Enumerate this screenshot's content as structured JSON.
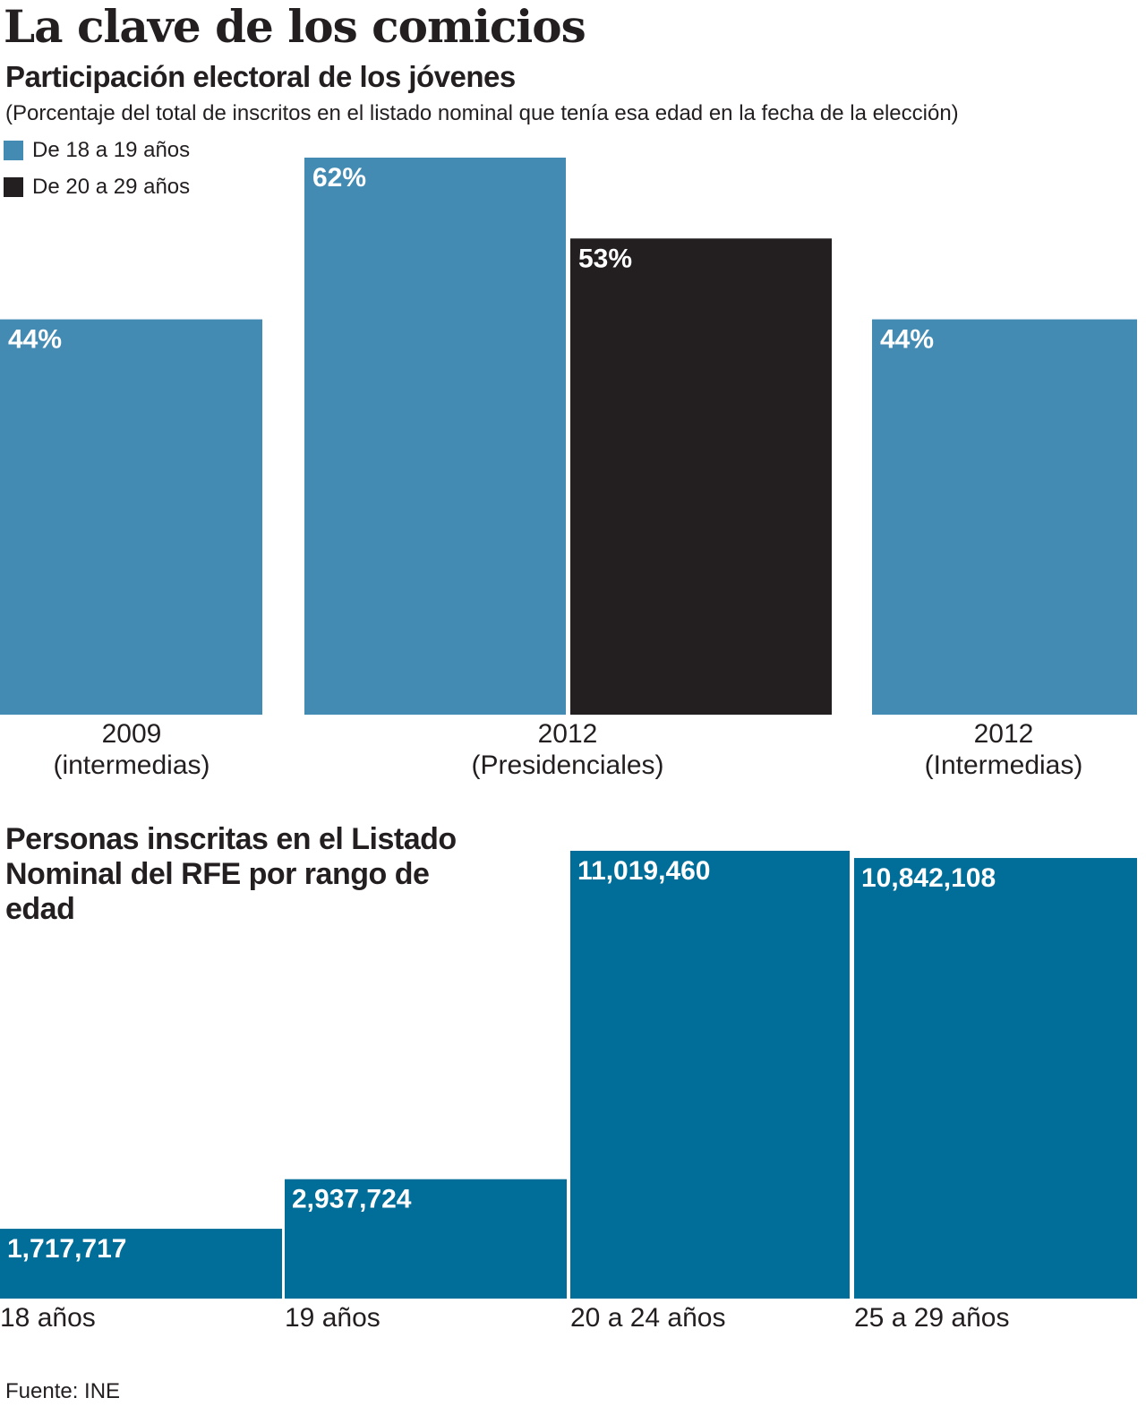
{
  "header": {
    "title": "La clave de los comicios"
  },
  "chart1": {
    "title": "Participación electoral de los jóvenes",
    "note": "(Porcentaje del total de inscritos en el listado nominal que tenía esa edad en la fecha de la elección)",
    "legend": [
      {
        "label": "De 18 a 19 años",
        "color": "#438bb3"
      },
      {
        "label": "De 20 a 29 años",
        "color": "#231f20"
      }
    ]
  },
  "chart2": {
    "title": "Personas inscritas en el Listado Nominal del RFE por rango de edad"
  },
  "footer": {
    "source": "Fuente: INE"
  },
  "chart_data": [
    {
      "type": "bar",
      "title": "Participación electoral de los jóvenes",
      "unit": "%",
      "categories": [
        {
          "line1": "2009",
          "line2": "(intermedias)"
        },
        {
          "line1": "2012",
          "line2": "(Presidenciales)"
        },
        {
          "line1": "2012",
          "line2": "(Intermedias)"
        }
      ],
      "series": [
        {
          "name": "De 18 a 19 años",
          "color": "#438bb3",
          "values": [
            44,
            62,
            44
          ],
          "labels": [
            "44%",
            "62%",
            "44%"
          ]
        },
        {
          "name": "De 20 a 29 años",
          "color": "#231f20",
          "values": [
            null,
            53,
            null
          ],
          "labels": [
            null,
            "53%",
            null
          ]
        }
      ],
      "ylim": [
        0,
        62
      ]
    },
    {
      "type": "bar",
      "title": "Personas inscritas en el Listado Nominal del RFE por rango de edad",
      "color": "#006e98",
      "categories": [
        "18 años",
        "19 años",
        "20 a 24 años",
        "25 a 29 años"
      ],
      "values": [
        1717717,
        2937724,
        11019460,
        10842108
      ],
      "labels": [
        "1,717,717",
        "2,937,724",
        "11,019,460",
        "10,842,108"
      ],
      "ylim": [
        0,
        11019460
      ]
    }
  ]
}
